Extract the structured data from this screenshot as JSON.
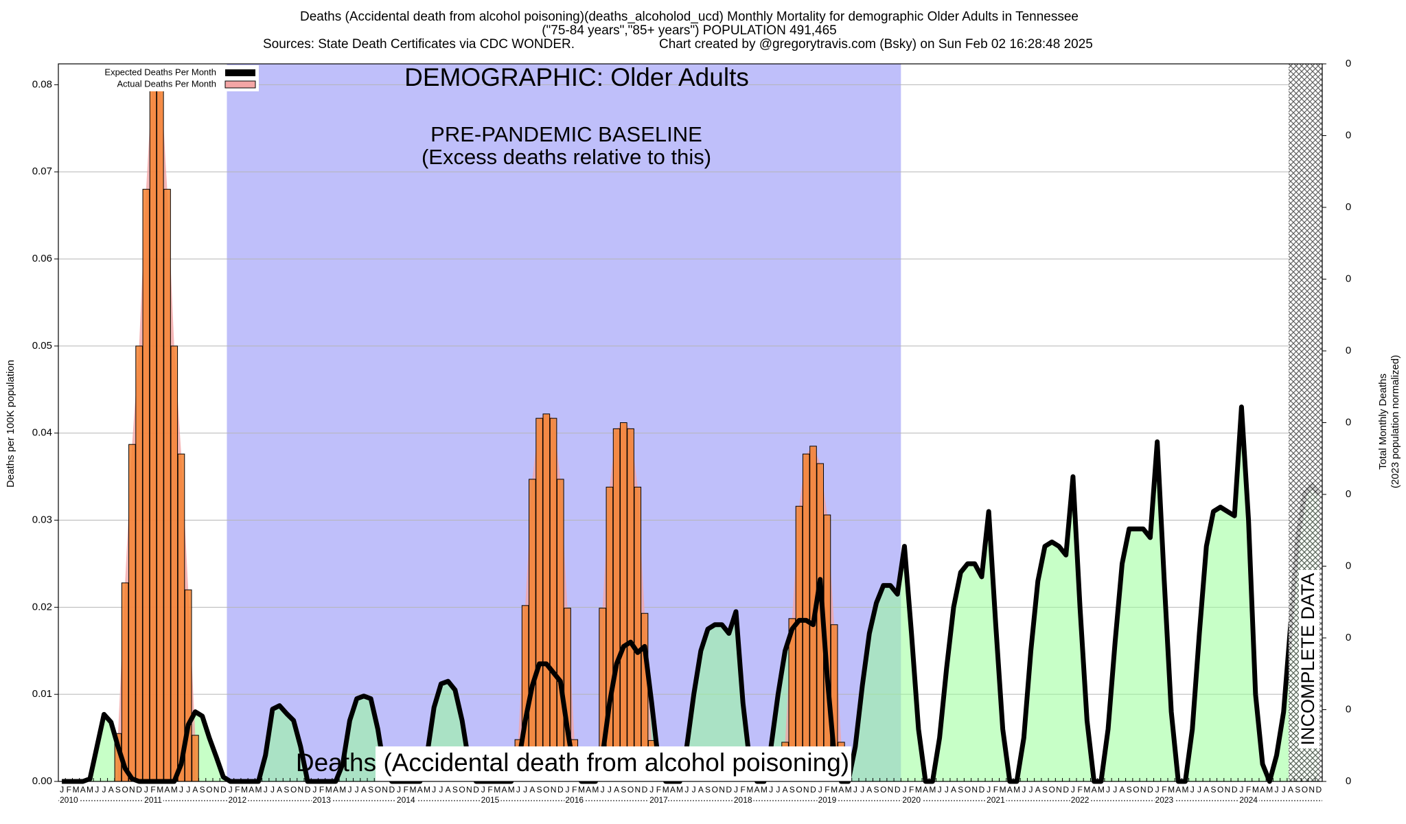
{
  "chart_data": {
    "type": "bar",
    "title": "Deaths (Accidental death from alcohol poisoning)(deaths_alcoholod_ucd) Monthly Mortality for demographic Older Adults in Tennessee",
    "subtitle": "(\"75-84 years\",\"85+ years\") POPULATION 491,465",
    "source": "Sources: State Death Certificates via CDC WONDER.",
    "credit": "Chart created by @gregorytravis.com (Bsky) on Sun Feb 02 16:28:48 2025",
    "annotations": [
      "DEMOGRAPHIC: Older Adults",
      "PRE-PANDEMIC BASELINE",
      "(Excess deaths relative to this)",
      "Deaths (Accidental death from alcohol poisoning)",
      "INCOMPLETE DATA"
    ],
    "ylabel": "Deaths per 100K population",
    "y2label": [
      "Total Monthly Deaths",
      "(2023 population normalized)"
    ],
    "categories": [
      "J",
      "F",
      "M",
      "A",
      "M",
      "J",
      "J",
      "A",
      "S",
      "O",
      "N",
      "D",
      "J",
      "F",
      "M",
      "A",
      "M",
      "J",
      "J",
      "A",
      "S",
      "O",
      "N",
      "D",
      "J",
      "F",
      "M",
      "A",
      "M",
      "J",
      "J",
      "A",
      "S",
      "O",
      "N",
      "D",
      "J",
      "F",
      "M",
      "A",
      "M",
      "J",
      "J",
      "A",
      "S",
      "O",
      "N",
      "D",
      "J",
      "F",
      "M",
      "A",
      "M",
      "J",
      "J",
      "A",
      "S",
      "O",
      "N",
      "D",
      "J",
      "F",
      "M",
      "A",
      "M",
      "J",
      "J",
      "A",
      "S",
      "O",
      "N",
      "D",
      "J",
      "F",
      "M",
      "A",
      "M",
      "J",
      "J",
      "A",
      "S",
      "O",
      "N",
      "D",
      "J",
      "F",
      "M",
      "A",
      "M",
      "J",
      "J",
      "A",
      "S",
      "O",
      "N",
      "D",
      "J",
      "F",
      "M",
      "A",
      "M",
      "J",
      "J",
      "A",
      "S",
      "O",
      "N",
      "D",
      "J",
      "F",
      "M",
      "A",
      "M",
      "J",
      "J",
      "A",
      "S",
      "O",
      "N",
      "D",
      "J",
      "F",
      "M",
      "A",
      "M",
      "J",
      "J",
      "A",
      "S",
      "O",
      "N",
      "D",
      "J",
      "F",
      "M",
      "A",
      "M",
      "J",
      "J",
      "A",
      "S",
      "O",
      "N",
      "D",
      "J",
      "F",
      "M",
      "A",
      "M",
      "J",
      "J",
      "A",
      "S",
      "O",
      "N",
      "D",
      "J",
      "F",
      "M",
      "A",
      "M",
      "J",
      "J",
      "A",
      "S",
      "O",
      "N",
      "D",
      "J",
      "F",
      "M",
      "A",
      "M",
      "J",
      "J",
      "A",
      "S",
      "O",
      "N",
      "D"
    ],
    "year_labels": [
      "2010",
      "2011",
      "2012",
      "2013",
      "2014",
      "2015",
      "2016",
      "2017",
      "2018",
      "2019",
      "2020",
      "2021",
      "2022",
      "2023",
      "2024"
    ],
    "series": [
      {
        "name": "Expected Deaths Per Month",
        "type": "line",
        "color": "#000000",
        "fill": "#99ff99",
        "values": [
          0,
          0,
          0,
          0,
          0.0003,
          0.004,
          0.0077,
          0.0068,
          0.004,
          0.0015,
          0.0003,
          0,
          0,
          0,
          0,
          0,
          0,
          0.002,
          0.0065,
          0.008,
          0.0075,
          0.005,
          0.0028,
          0.0005,
          0,
          0,
          0,
          0,
          0,
          0.003,
          0.0083,
          0.0087,
          0.0078,
          0.007,
          0.004,
          0,
          0,
          0,
          0,
          0,
          0.002,
          0.007,
          0.0095,
          0.0098,
          0.0095,
          0.006,
          0.001,
          0,
          0,
          0,
          0,
          0,
          0.003,
          0.0085,
          0.0112,
          0.0115,
          0.0105,
          0.007,
          0.002,
          0,
          0,
          0,
          0,
          0,
          0,
          0.002,
          0.007,
          0.011,
          0.0135,
          0.0135,
          0.0125,
          0.0115,
          0.006,
          0.001,
          0,
          0,
          0,
          0.003,
          0.009,
          0.0135,
          0.0155,
          0.016,
          0.0148,
          0.0155,
          0.009,
          0.002,
          0,
          0,
          0,
          0.004,
          0.01,
          0.015,
          0.0175,
          0.018,
          0.018,
          0.017,
          0.0195,
          0.009,
          0.002,
          0,
          0,
          0.004,
          0.01,
          0.015,
          0.0175,
          0.0185,
          0.0185,
          0.018,
          0.0232,
          0.012,
          0.003,
          0,
          0,
          0.004,
          0.011,
          0.017,
          0.0205,
          0.0225,
          0.0225,
          0.0215,
          0.027,
          0.017,
          0.006,
          0,
          0,
          0.005,
          0.013,
          0.02,
          0.024,
          0.025,
          0.025,
          0.0235,
          0.031,
          0.018,
          0.006,
          0,
          0,
          0.005,
          0.015,
          0.023,
          0.027,
          0.0275,
          0.027,
          0.026,
          0.035,
          0.02,
          0.007,
          0,
          0,
          0.006,
          0.016,
          0.025,
          0.029,
          0.029,
          0.029,
          0.028,
          0.039,
          0.023,
          0.008,
          0,
          0,
          0.006,
          0.017,
          0.027,
          0.031,
          0.0315,
          0.031,
          0.0305,
          0.043,
          0.03,
          0.01,
          0.002,
          0,
          0.003,
          0.008,
          0.018,
          0.028,
          0.033,
          0.034,
          0.033
        ]
      },
      {
        "name": "Actual Deaths Per Month",
        "type": "bar",
        "color": "#f58231",
        "fill": "#f4a6a6",
        "values": [
          null,
          null,
          null,
          null,
          null,
          null,
          null,
          null,
          0.0055,
          0.0228,
          0.0387,
          0.05,
          0.068,
          0.082,
          0.082,
          0.068,
          0.05,
          0.0376,
          0.022,
          0.0053,
          null,
          null,
          null,
          null,
          null,
          null,
          null,
          null,
          null,
          null,
          null,
          null,
          null,
          null,
          null,
          null,
          null,
          null,
          null,
          null,
          null,
          null,
          null,
          null,
          null,
          null,
          null,
          null,
          null,
          null,
          null,
          null,
          null,
          null,
          null,
          null,
          null,
          null,
          null,
          null,
          null,
          null,
          null,
          null,
          null,
          0.0048,
          0.0202,
          0.0347,
          0.0417,
          0.0422,
          0.0417,
          0.0347,
          0.0199,
          0.0048,
          null,
          null,
          null,
          0.0199,
          0.0338,
          0.0405,
          0.0412,
          0.0405,
          0.0338,
          0.0193,
          0.0047,
          null,
          null,
          null,
          null,
          null,
          null,
          null,
          null,
          null,
          null,
          null,
          null,
          null,
          null,
          null,
          null,
          null,
          null,
          0.0045,
          0.0187,
          0.0316,
          0.0376,
          0.0385,
          0.0365,
          0.0306,
          0.018,
          0.0045,
          null,
          null,
          null,
          null,
          null,
          null,
          null,
          null,
          null,
          null,
          null,
          null,
          null,
          null,
          null,
          null,
          null,
          null,
          null,
          null,
          null,
          null,
          null,
          null,
          null,
          null,
          null,
          null,
          null,
          null,
          null,
          null,
          null,
          null,
          null,
          null,
          null,
          null,
          null,
          null,
          null,
          null,
          null,
          null,
          null,
          null,
          null,
          null,
          null,
          null,
          null,
          null,
          null,
          null,
          null,
          null,
          null,
          null,
          null,
          null,
          null,
          null,
          null,
          null,
          null,
          null,
          null,
          null
        ]
      }
    ],
    "baseline_color": "#bfbffa",
    "ylim": [
      0,
      0.0824
    ],
    "yticks": [
      {
        "value": 0,
        "label": "0.00"
      },
      0.01,
      0.02,
      0.03,
      0.04,
      0.05,
      0.06,
      0.07,
      0.08
    ],
    "y2lim": [
      0,
      0.0824
    ],
    "y2ticks": [
      0,
      {
        "value": 0.00824,
        "label": "0"
      },
      {
        "value": 0.01648,
        "label": "0"
      },
      {
        "value": 0.02472,
        "label": "0"
      },
      {
        "value": 0.03296,
        "label": "0"
      },
      {
        "value": 0.0412,
        "label": "0"
      },
      {
        "value": 0.04944,
        "label": "0"
      },
      {
        "value": 0.05768,
        "label": "0"
      },
      {
        "value": 0.06592,
        "label": "0"
      },
      {
        "value": 0.07416,
        "label": "0"
      },
      {
        "value": 0.0824,
        "label": "0"
      }
    ],
    "grid": true,
    "legend": "top-left"
  }
}
